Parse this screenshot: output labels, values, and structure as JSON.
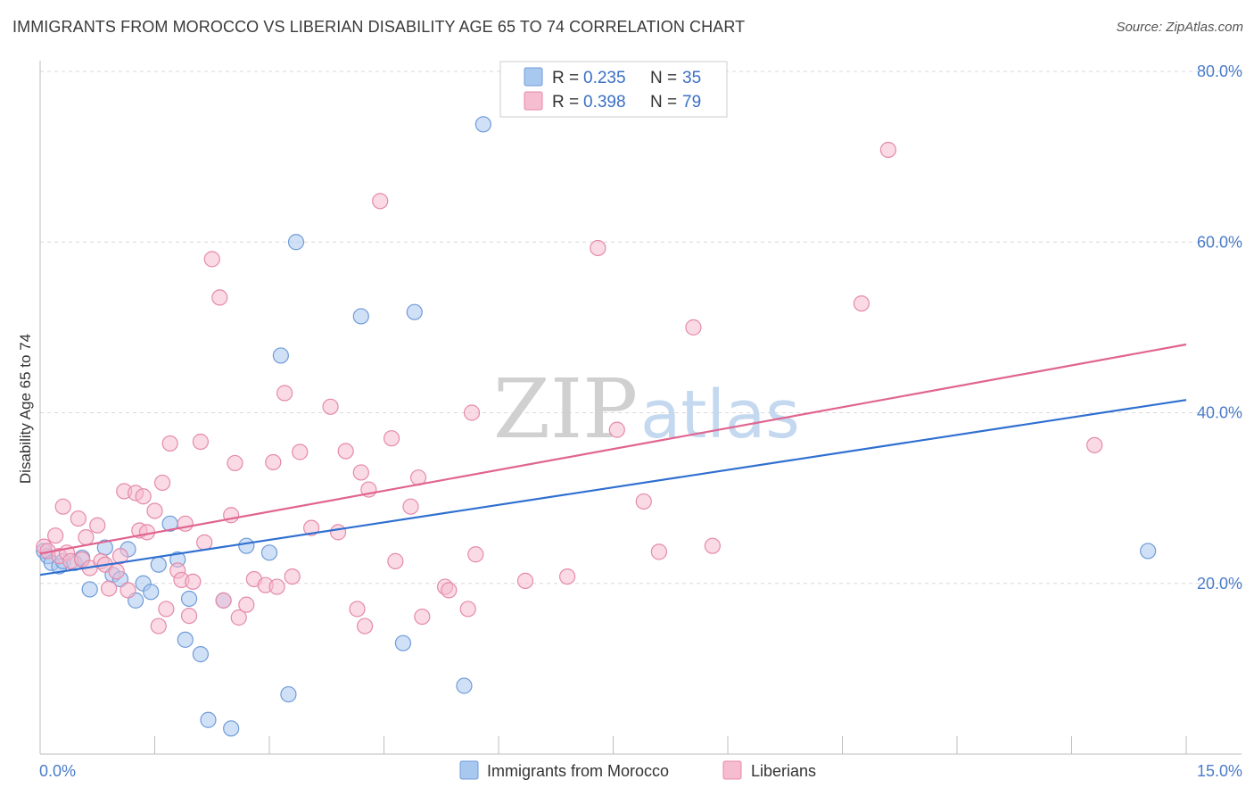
{
  "title": "IMMIGRANTS FROM MOROCCO VS LIBERIAN DISABILITY AGE 65 TO 74 CORRELATION CHART",
  "source": "Source: ZipAtlas.com",
  "watermark": {
    "zip": "ZIP",
    "atlas": "atlas"
  },
  "legend": {
    "r_label": "R =",
    "n_label": "N =",
    "series": [
      {
        "r": "0.235",
        "n": "35"
      },
      {
        "r": "0.398",
        "n": "79"
      }
    ]
  },
  "colors": {
    "blue_fill": "#a9c8f0",
    "blue_stroke": "#6f9bd8",
    "blue_line": "#2f6fd0",
    "pink_fill": "#f6bcd0",
    "pink_stroke": "#e58aaa",
    "pink_line": "#e0648f",
    "grid": "#d9d9d9",
    "axis_text": "#4a7cc9"
  },
  "chart_data": {
    "type": "scatter",
    "title": "IMMIGRANTS FROM MOROCCO VS LIBERIAN DISABILITY AGE 65 TO 74 CORRELATION CHART",
    "xlabel": "",
    "ylabel": "Disability Age 65 to 74",
    "xlim": [
      0,
      15
    ],
    "ylim": [
      0,
      82
    ],
    "x_tick_labels": [
      {
        "value": 0,
        "label": "0.0%"
      },
      {
        "value": 15,
        "label": "15.0%"
      }
    ],
    "y_tick_labels": [
      {
        "value": 20,
        "label": "20.0%"
      },
      {
        "value": 40,
        "label": "40.0%"
      },
      {
        "value": 60,
        "label": "60.0%"
      },
      {
        "value": 80,
        "label": "80.0%"
      }
    ],
    "series": [
      {
        "name": "Immigrants from Morocco",
        "color": "blue",
        "trend": [
          [
            0,
            21.0
          ],
          [
            15,
            41.5
          ]
        ],
        "points": [
          [
            0.05,
            23.8
          ],
          [
            0.1,
            23.2
          ],
          [
            0.15,
            22.4
          ],
          [
            0.25,
            22.0
          ],
          [
            0.3,
            22.6
          ],
          [
            0.45,
            22.4
          ],
          [
            0.55,
            23.0
          ],
          [
            0.65,
            19.3
          ],
          [
            0.85,
            24.2
          ],
          [
            0.95,
            21.0
          ],
          [
            1.05,
            20.5
          ],
          [
            1.15,
            24.0
          ],
          [
            1.25,
            18.0
          ],
          [
            1.35,
            20.0
          ],
          [
            1.45,
            19.0
          ],
          [
            1.55,
            22.2
          ],
          [
            1.7,
            27.0
          ],
          [
            1.8,
            22.8
          ],
          [
            1.9,
            13.4
          ],
          [
            1.95,
            18.2
          ],
          [
            2.1,
            11.7
          ],
          [
            2.2,
            4.0
          ],
          [
            2.4,
            18.0
          ],
          [
            2.5,
            3.0
          ],
          [
            2.7,
            24.4
          ],
          [
            3.0,
            23.6
          ],
          [
            3.15,
            46.7
          ],
          [
            3.25,
            7.0
          ],
          [
            3.35,
            60.0
          ],
          [
            4.2,
            51.3
          ],
          [
            4.75,
            13.0
          ],
          [
            4.9,
            51.8
          ],
          [
            5.55,
            8.0
          ],
          [
            5.8,
            73.8
          ],
          [
            14.5,
            23.8
          ]
        ]
      },
      {
        "name": "Liberians",
        "color": "pink",
        "trend": [
          [
            0,
            23.5
          ],
          [
            15,
            48.0
          ]
        ],
        "points": [
          [
            0.05,
            24.3
          ],
          [
            0.1,
            23.8
          ],
          [
            0.2,
            25.6
          ],
          [
            0.25,
            23.2
          ],
          [
            0.3,
            29.0
          ],
          [
            0.35,
            23.6
          ],
          [
            0.4,
            22.6
          ],
          [
            0.5,
            27.6
          ],
          [
            0.55,
            22.8
          ],
          [
            0.6,
            25.4
          ],
          [
            0.65,
            21.8
          ],
          [
            0.75,
            26.8
          ],
          [
            0.8,
            22.6
          ],
          [
            0.85,
            22.2
          ],
          [
            0.9,
            19.4
          ],
          [
            1.0,
            21.4
          ],
          [
            1.05,
            23.2
          ],
          [
            1.1,
            30.8
          ],
          [
            1.15,
            19.2
          ],
          [
            1.25,
            30.6
          ],
          [
            1.3,
            26.2
          ],
          [
            1.35,
            30.2
          ],
          [
            1.4,
            26.0
          ],
          [
            1.5,
            28.5
          ],
          [
            1.55,
            15.0
          ],
          [
            1.6,
            31.8
          ],
          [
            1.65,
            17.0
          ],
          [
            1.7,
            36.4
          ],
          [
            1.8,
            21.5
          ],
          [
            1.85,
            20.4
          ],
          [
            1.9,
            27.0
          ],
          [
            1.95,
            16.2
          ],
          [
            2.0,
            20.2
          ],
          [
            2.1,
            36.6
          ],
          [
            2.15,
            24.8
          ],
          [
            2.25,
            58.0
          ],
          [
            2.35,
            53.5
          ],
          [
            2.4,
            18.0
          ],
          [
            2.5,
            28.0
          ],
          [
            2.55,
            34.1
          ],
          [
            2.6,
            16.0
          ],
          [
            2.7,
            17.5
          ],
          [
            2.8,
            20.5
          ],
          [
            2.95,
            19.8
          ],
          [
            3.05,
            34.2
          ],
          [
            3.1,
            19.6
          ],
          [
            3.2,
            42.3
          ],
          [
            3.3,
            20.8
          ],
          [
            3.4,
            35.4
          ],
          [
            3.55,
            26.5
          ],
          [
            3.8,
            40.7
          ],
          [
            3.9,
            26.0
          ],
          [
            4.0,
            35.5
          ],
          [
            4.15,
            17.0
          ],
          [
            4.2,
            33.0
          ],
          [
            4.25,
            15.0
          ],
          [
            4.3,
            31.0
          ],
          [
            4.45,
            64.8
          ],
          [
            4.6,
            37.0
          ],
          [
            4.65,
            22.6
          ],
          [
            4.85,
            29.0
          ],
          [
            4.95,
            32.4
          ],
          [
            5.0,
            16.1
          ],
          [
            5.3,
            19.6
          ],
          [
            5.35,
            19.2
          ],
          [
            5.6,
            17.0
          ],
          [
            5.65,
            40.0
          ],
          [
            5.7,
            23.4
          ],
          [
            6.35,
            20.3
          ],
          [
            6.9,
            20.8
          ],
          [
            7.3,
            59.3
          ],
          [
            7.55,
            38.0
          ],
          [
            7.9,
            29.6
          ],
          [
            8.1,
            23.7
          ],
          [
            8.55,
            50.0
          ],
          [
            8.8,
            24.4
          ],
          [
            10.75,
            52.8
          ],
          [
            11.1,
            70.8
          ],
          [
            13.8,
            36.2
          ]
        ]
      }
    ]
  },
  "bottom_legend": [
    {
      "label": "Immigrants from Morocco"
    },
    {
      "label": "Liberians"
    }
  ]
}
